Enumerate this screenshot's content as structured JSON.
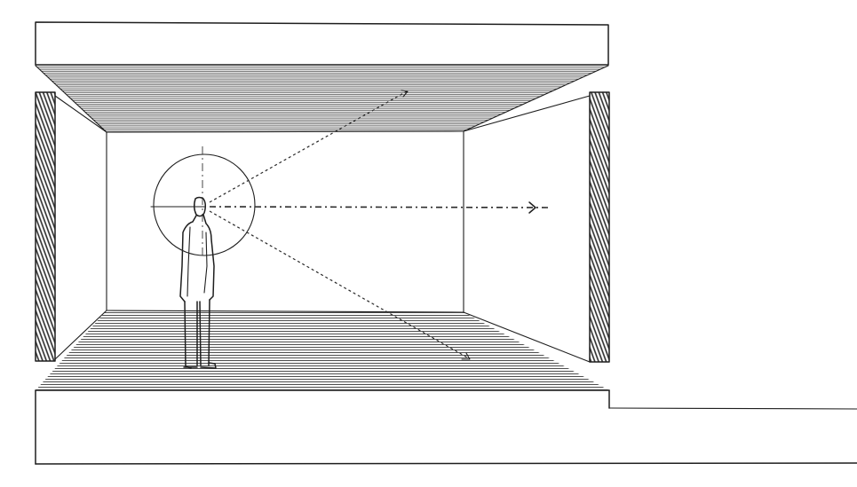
{
  "drawing": {
    "subject": "section-sketch-observer-cone-of-vision",
    "colors": {
      "ink": "#1e1e1e",
      "hatch": "#3a3a3a",
      "wall_hatch": "#2b2b2b",
      "paper": "#ffffff"
    },
    "icons": {
      "observer": "standing-person-icon",
      "vision_circle": "cone-of-vision-icon",
      "arrow": "arrowhead-icon"
    }
  }
}
